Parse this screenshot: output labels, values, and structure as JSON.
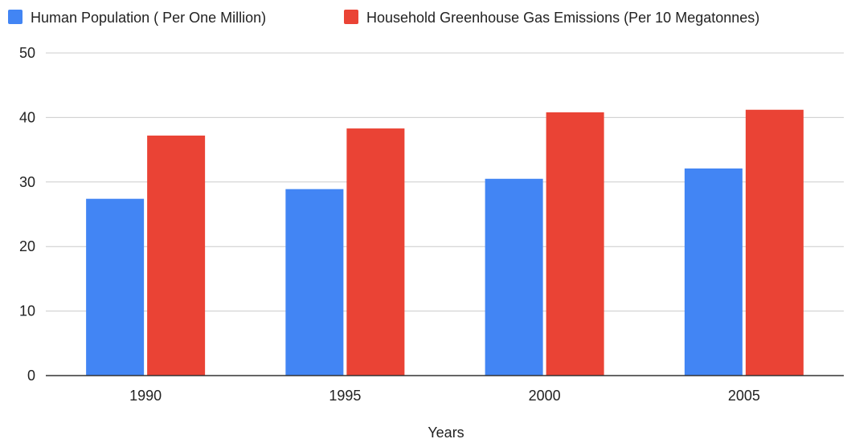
{
  "chart_data": {
    "type": "bar",
    "title": "",
    "xlabel": "Years",
    "ylabel": "",
    "categories": [
      "1990",
      "1995",
      "2000",
      "2005"
    ],
    "series": [
      {
        "name": "Human Population ( Per One Million)",
        "color": "#4285F4",
        "values": [
          27.4,
          28.9,
          30.5,
          32.1
        ]
      },
      {
        "name": "Household Greenhouse Gas Emissions (Per 10 Megatonnes)",
        "color": "#EA4335",
        "values": [
          37.2,
          38.3,
          40.8,
          41.2
        ]
      }
    ],
    "ylim": [
      0,
      50
    ],
    "yticks": [
      "0",
      "10",
      "20",
      "30",
      "40",
      "50"
    ],
    "grid": true,
    "legend_position": "top"
  }
}
